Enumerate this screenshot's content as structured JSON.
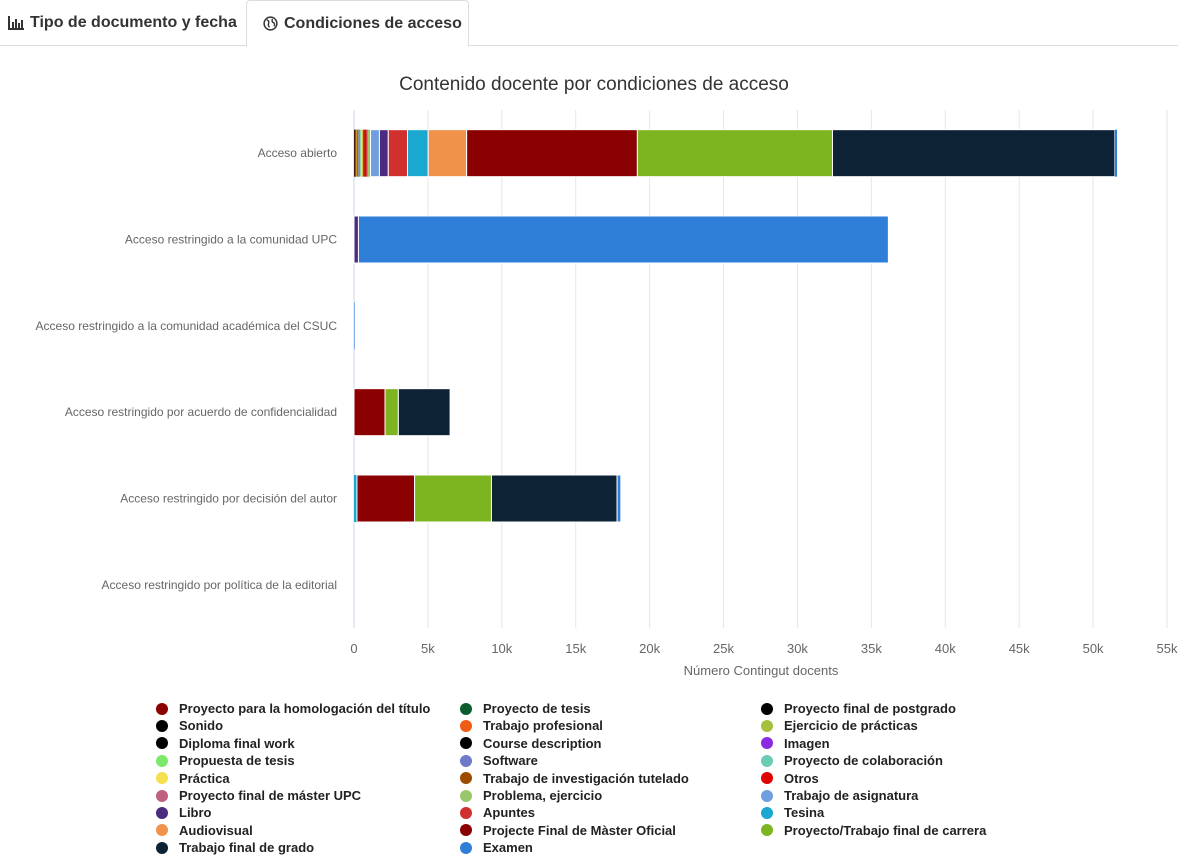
{
  "tabs": [
    {
      "label": "Tipo de documento y fecha",
      "icon": "bar-chart-icon",
      "active": false
    },
    {
      "label": "Condiciones de acceso",
      "icon": "globe-icon",
      "active": true
    }
  ],
  "chart_data": {
    "type": "bar",
    "orientation": "horizontal",
    "stacked": true,
    "title": "Contenido docente por condiciones de acceso",
    "xlabel": "Número Contingut docents",
    "ylabel": "",
    "xlim": [
      0,
      55000
    ],
    "xticks": [
      0,
      5000,
      10000,
      15000,
      20000,
      25000,
      30000,
      35000,
      40000,
      45000,
      50000,
      55000
    ],
    "xtick_labels": [
      "0",
      "5k",
      "10k",
      "15k",
      "20k",
      "25k",
      "30k",
      "35k",
      "40k",
      "45k",
      "50k",
      "55k"
    ],
    "grid": true,
    "legend_position": "bottom",
    "categories": [
      "Acceso abierto",
      "Acceso restringido a la comunidad UPC",
      "Acceso restringido a la comunidad académica del CSUC",
      "Acceso restringido por acuerdo de confidencialidad",
      "Acceso restringido por decisión del autor",
      "Acceso restringido por política de la editorial"
    ],
    "series": [
      {
        "name": "Proyecto para la homologación del título",
        "color": "#8b0000",
        "values": [
          30,
          0,
          0,
          0,
          0,
          0
        ]
      },
      {
        "name": "Proyecto de tesis",
        "color": "#0b5d2e",
        "values": [
          20,
          0,
          0,
          0,
          0,
          0
        ]
      },
      {
        "name": "Proyecto final de postgrado",
        "color": "#000000",
        "values": [
          30,
          0,
          0,
          0,
          0,
          0
        ]
      },
      {
        "name": "Sonido",
        "color": "#000000",
        "values": [
          10,
          0,
          0,
          0,
          0,
          0
        ]
      },
      {
        "name": "Trabajo profesional",
        "color": "#f15a12",
        "values": [
          80,
          0,
          0,
          0,
          0,
          0
        ]
      },
      {
        "name": "Ejercicio de prácticas",
        "color": "#a5c13c",
        "values": [
          80,
          0,
          0,
          0,
          0,
          0
        ]
      },
      {
        "name": "Diploma final work",
        "color": "#000000",
        "values": [
          10,
          0,
          0,
          0,
          0,
          0
        ]
      },
      {
        "name": "Course description",
        "color": "#000000",
        "values": [
          10,
          0,
          0,
          0,
          0,
          0
        ]
      },
      {
        "name": "Imagen",
        "color": "#8a2be2",
        "values": [
          30,
          0,
          0,
          0,
          0,
          0
        ]
      },
      {
        "name": "Propuesta de tesis",
        "color": "#7ee86b",
        "values": [
          40,
          0,
          0,
          0,
          0,
          0
        ]
      },
      {
        "name": "Software",
        "color": "#6e79c9",
        "values": [
          60,
          0,
          0,
          0,
          0,
          0
        ]
      },
      {
        "name": "Proyecto de colaboración",
        "color": "#6ccbb5",
        "values": [
          60,
          0,
          0,
          0,
          0,
          0
        ]
      },
      {
        "name": "Práctica",
        "color": "#f5e050",
        "values": [
          130,
          0,
          0,
          0,
          0,
          0
        ]
      },
      {
        "name": "Trabajo de investigación tutelado",
        "color": "#9c4a00",
        "values": [
          120,
          0,
          0,
          0,
          0,
          0
        ]
      },
      {
        "name": "Otros",
        "color": "#e00000",
        "values": [
          150,
          0,
          0,
          0,
          0,
          0
        ]
      },
      {
        "name": "Proyecto final de máster UPC",
        "color": "#c06080",
        "values": [
          80,
          0,
          0,
          0,
          0,
          0
        ]
      },
      {
        "name": "Problema, ejercicio",
        "color": "#9ac76a",
        "values": [
          180,
          0,
          0,
          0,
          0,
          0
        ]
      },
      {
        "name": "Trabajo de asignatura",
        "color": "#6f9fe0",
        "values": [
          600,
          0,
          0,
          0,
          0,
          0
        ]
      },
      {
        "name": "Libro",
        "color": "#4b2b7f",
        "values": [
          600,
          300,
          0,
          0,
          0,
          0
        ]
      },
      {
        "name": "Apuntes",
        "color": "#d0302e",
        "values": [
          1300,
          0,
          0,
          0,
          0,
          0
        ]
      },
      {
        "name": "Tesina",
        "color": "#1aa7d0",
        "values": [
          1400,
          0,
          0,
          0,
          200,
          0
        ]
      },
      {
        "name": "Audiovisual",
        "color": "#f0924a",
        "values": [
          2600,
          0,
          0,
          0,
          0,
          0
        ]
      },
      {
        "name": "Projecte Final de Màster Oficial",
        "color": "#8b0000",
        "values": [
          11550,
          0,
          0,
          2100,
          3900,
          0
        ]
      },
      {
        "name": "Proyecto/Trabajo final de carrera",
        "color": "#7db521",
        "values": [
          13200,
          0,
          0,
          900,
          5200,
          0
        ]
      },
      {
        "name": "Trabajo final de grado",
        "color": "#0e2236",
        "values": [
          19100,
          0,
          0,
          3500,
          8500,
          0
        ]
      },
      {
        "name": "Examen",
        "color": "#2f7ed8",
        "values": [
          150,
          35850,
          10,
          0,
          250,
          0
        ]
      }
    ],
    "legend_order": [
      "Proyecto para la homologación del título",
      "Proyecto de tesis",
      "Proyecto final de postgrado",
      "Sonido",
      "Trabajo profesional",
      "Ejercicio de prácticas",
      "Diploma final work",
      "Course description",
      "Imagen",
      "Propuesta de tesis",
      "Software",
      "Proyecto de colaboración",
      "Práctica",
      "Trabajo de investigación tutelado",
      "Otros",
      "Proyecto final de máster UPC",
      "Problema, ejercicio",
      "Trabajo de asignatura",
      "Libro",
      "Apuntes",
      "Tesina",
      "Audiovisual",
      "Projecte Final de Màster Oficial",
      "Proyecto/Trabajo final de carrera",
      "Trabajo final de grado",
      "Examen"
    ]
  }
}
